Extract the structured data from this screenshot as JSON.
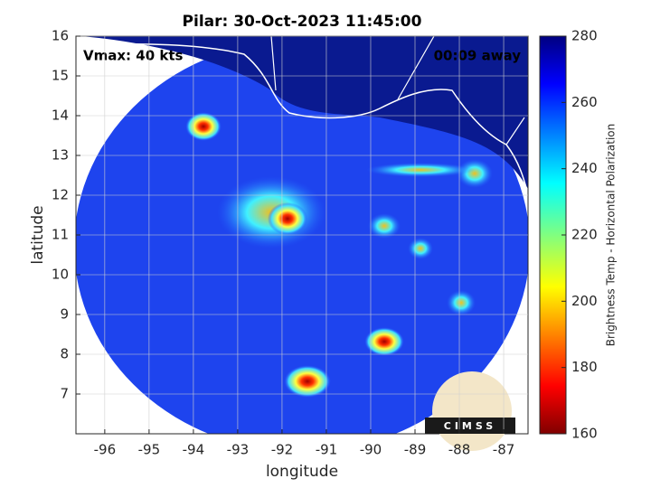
{
  "chart_data": {
    "type": "map",
    "title": "Pilar: 30-Oct-2023 11:45:00",
    "xlabel": "longitude",
    "ylabel": "latitude",
    "annotations": [
      "Vmax: 40 kts",
      "00:09 away"
    ],
    "xlim": [
      -96.65,
      -86.45
    ],
    "xticks": [
      -96,
      -95,
      -94,
      -93,
      -92,
      -91,
      -90,
      -89,
      -88,
      -87
    ],
    "ylim": [
      6,
      16
    ],
    "yticks": [
      7,
      8,
      9,
      10,
      11,
      12,
      13,
      14,
      15,
      16
    ],
    "grid": true,
    "colorbar": {
      "label": "Brightness Temp - Horizontal Polarization",
      "lim": [
        160,
        280
      ],
      "ticks": [
        160,
        180,
        200,
        220,
        240,
        260,
        280
      ]
    }
  },
  "logo": "CIMSS"
}
